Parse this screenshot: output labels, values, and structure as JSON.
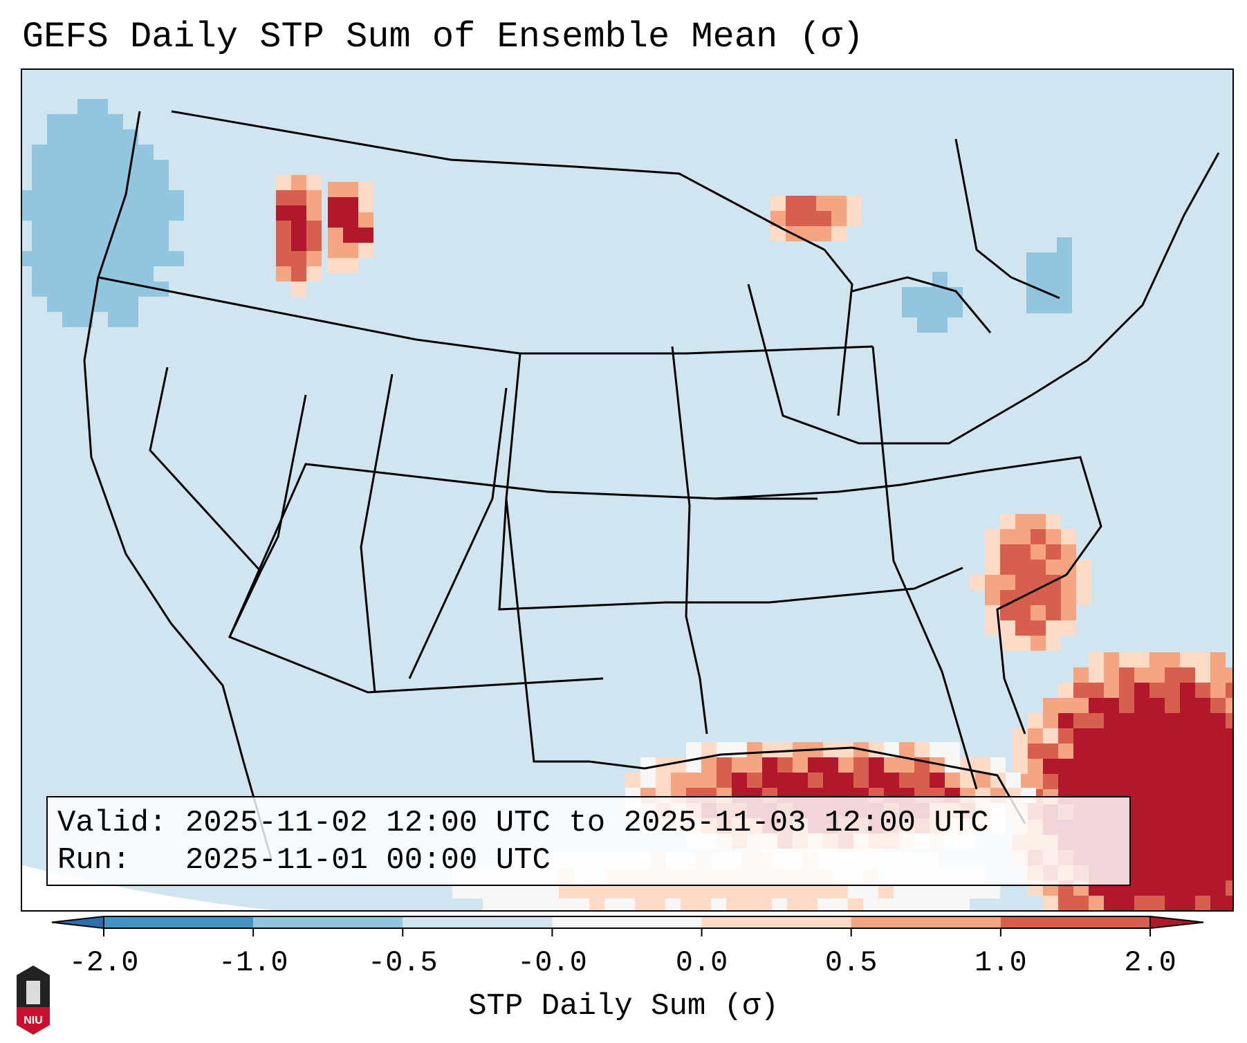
{
  "chart_data": {
    "type": "heatmap",
    "title": "GEFS Daily STP Sum of Ensemble Mean (σ)",
    "colorbar": {
      "label": "STP Daily Sum (σ)",
      "ticks": [
        "-2.0",
        "-1.0",
        "-0.5",
        "-0.0",
        "0.0",
        "0.5",
        "1.0",
        "2.0"
      ],
      "bins": [
        {
          "range": "< -2.0",
          "color": "#2b6fb0"
        },
        {
          "range": "-2.0 to -1.0",
          "color": "#4393c3"
        },
        {
          "range": "-1.0 to -0.5",
          "color": "#92c5de"
        },
        {
          "range": "-0.5 to -0.0",
          "color": "#d1e5f0"
        },
        {
          "range": "-0.0 to 0.0",
          "color": "#f7f7f7"
        },
        {
          "range": "0.0 to 0.5",
          "color": "#fddbc7"
        },
        {
          "range": "0.5 to 1.0",
          "color": "#f4a582"
        },
        {
          "range": "1.0 to 2.0",
          "color": "#d6604d"
        },
        {
          "range": "> 2.0",
          "color": "#b2182b"
        }
      ],
      "extend": "both"
    },
    "region": "Continental United States",
    "notable_features": [
      {
        "area": "Gulf of Mexico / Atlantic off Southeast coast",
        "value": "> 2.0"
      },
      {
        "area": "Pacific Northwest offshore",
        "value": "-1.0 to -0.5"
      },
      {
        "area": "Idaho / Montana scattered",
        "value": "0.5 to > 2.0"
      }
    ]
  },
  "info_box": {
    "valid_label": "Valid:",
    "valid_value": "2025-11-02 12:00 UTC to 2025-11-03 12:00 UTC",
    "run_label": "Run:",
    "run_value": "2025-11-01 00:00 UTC"
  },
  "logo": {
    "text": "NIU"
  }
}
